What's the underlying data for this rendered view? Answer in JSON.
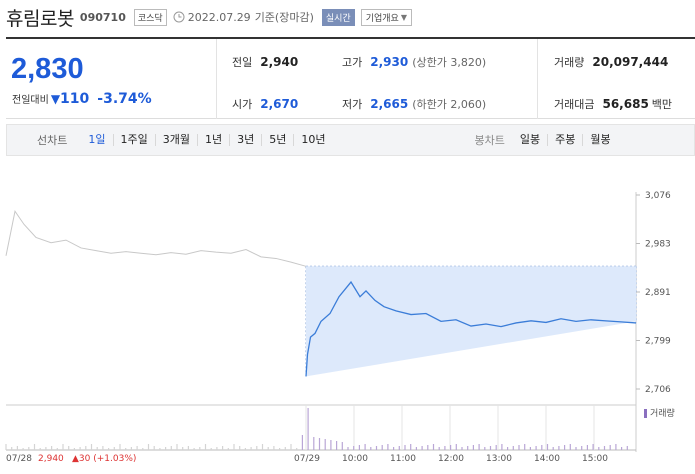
{
  "header": {
    "name": "휴림로봇",
    "code": "090710",
    "market": "코스닥",
    "date": "2022.07.29",
    "basis": "기준(장마감)",
    "live_label": "실시간",
    "corp_info_label": "기업개요"
  },
  "summary": {
    "price": "2,830",
    "change_label": "전일대비",
    "change_arrow": "▼",
    "change_amount": "110",
    "change_pct": "-3.74%",
    "prev_close_label": "전일",
    "prev_close": "2,940",
    "open_label": "시가",
    "open": "2,670",
    "high_label": "고가",
    "high": "2,930",
    "upper_limit": "(상한가 3,820)",
    "low_label": "저가",
    "low": "2,665",
    "lower_limit": "(하한가 2,060)",
    "volume_label": "거래량",
    "volume": "20,097,444",
    "amount_label": "거래대금",
    "amount": "56,685",
    "amount_unit": "백만"
  },
  "tabs": {
    "line_label": "선차트",
    "line_items": [
      "1일",
      "1주일",
      "3개월",
      "1년",
      "3년",
      "5년",
      "10년"
    ],
    "active": "1일",
    "candle_label": "봉차트",
    "candle_items": [
      "일봉",
      "주봉",
      "월봉"
    ]
  },
  "chart_data": {
    "type": "line",
    "y_ticks": [
      "3,076",
      "2,983",
      "2,891",
      "2,799",
      "2,706"
    ],
    "ylim": [
      2706,
      3076
    ],
    "x_labels": [
      "07/28",
      "07/29",
      "10:00",
      "11:00",
      "12:00",
      "13:00",
      "14:00",
      "15:00"
    ],
    "volume_label": "거래량",
    "prev_day_label": "07/28",
    "prev_day_close": "2,940",
    "prev_day_change": "▲30 (+1.03%)",
    "series": [
      {
        "key": "prev-day",
        "color": "#c8c8c8",
        "x": [
          0,
          0.3,
          0.6,
          1,
          1.5,
          2,
          2.5,
          3,
          3.5,
          4,
          4.5,
          5,
          5.5,
          6,
          6.5,
          7,
          7.5,
          8,
          8.5,
          9,
          9.5,
          10
        ],
        "y": [
          2960,
          3045,
          3020,
          2995,
          2985,
          2990,
          2975,
          2970,
          2965,
          2968,
          2965,
          2962,
          2966,
          2963,
          2970,
          2967,
          2965,
          2972,
          2958,
          2955,
          2948,
          2940
        ]
      },
      {
        "key": "today",
        "color": "#3b7dd8",
        "x": [
          10,
          10.05,
          10.15,
          10.3,
          10.5,
          10.8,
          11.1,
          11.5,
          11.8,
          12,
          12.3,
          12.6,
          13,
          13.5,
          14,
          14.5,
          15,
          15.5,
          16,
          16.5,
          17,
          17.5,
          18,
          18.5,
          19,
          19.5,
          20,
          20.5,
          21
        ],
        "y": [
          2730,
          2772,
          2805,
          2812,
          2835,
          2850,
          2882,
          2910,
          2882,
          2893,
          2875,
          2863,
          2855,
          2848,
          2850,
          2835,
          2838,
          2826,
          2830,
          2825,
          2832,
          2836,
          2833,
          2840,
          2835,
          2838,
          2836,
          2834,
          2832
        ]
      }
    ]
  }
}
